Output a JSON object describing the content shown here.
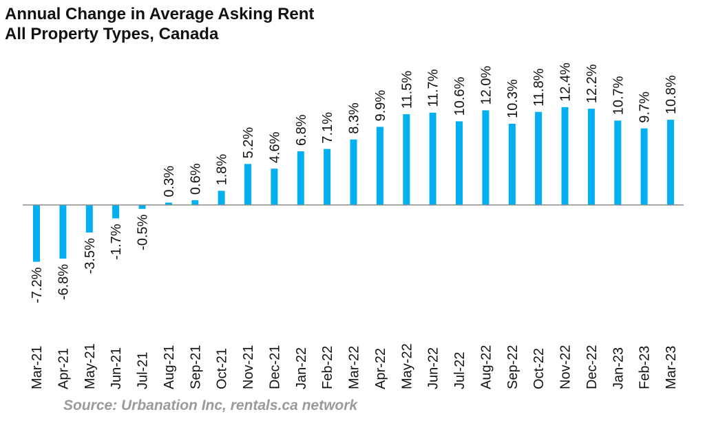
{
  "chart_data": {
    "type": "bar",
    "title": "Annual Change in Average Asking Rent",
    "subtitle": "All Property Types, Canada",
    "categories": [
      "Mar-21",
      "Apr-21",
      "May-21",
      "Jun-21",
      "Jul-21",
      "Aug-21",
      "Sep-21",
      "Oct-21",
      "Nov-21",
      "Dec-21",
      "Jan-22",
      "Feb-22",
      "Mar-22",
      "Apr-22",
      "May-22",
      "Jun-22",
      "Jul-22",
      "Aug-22",
      "Sep-22",
      "Oct-22",
      "Nov-22",
      "Dec-22",
      "Jan-23",
      "Feb-23",
      "Mar-23"
    ],
    "values": [
      -7.2,
      -6.8,
      -3.5,
      -1.7,
      -0.5,
      0.3,
      0.6,
      1.8,
      5.2,
      4.6,
      6.8,
      7.1,
      8.3,
      9.9,
      11.5,
      11.7,
      10.6,
      12.0,
      10.3,
      11.8,
      12.4,
      12.2,
      10.7,
      9.7,
      10.8
    ],
    "data_labels": [
      "-7.2%",
      "-6.8%",
      "-3.5%",
      "-1.7%",
      "-0.5%",
      "0.3%",
      "0.6%",
      "1.8%",
      "5.2%",
      "4.6%",
      "6.8%",
      "7.1%",
      "8.3%",
      "9.9%",
      "11.5%",
      "11.7%",
      "10.6%",
      "12.0%",
      "10.3%",
      "11.8%",
      "12.4%",
      "12.2%",
      "10.7%",
      "9.7%",
      "10.8%"
    ],
    "bar_color": "#00b0f0",
    "axis_color": "#8c8c8c",
    "xlabel": "",
    "ylabel": "",
    "grid": false,
    "legend": "none"
  },
  "source": "Source: Urbanation Inc, rentals.ca network"
}
